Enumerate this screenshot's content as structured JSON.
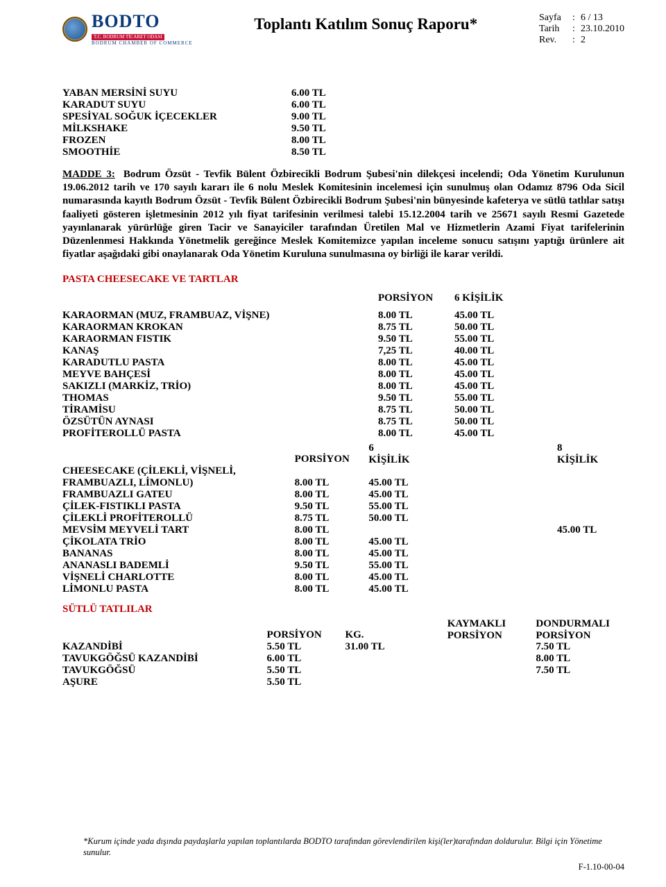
{
  "header": {
    "logo": {
      "name": "BODTO",
      "strip": "T.C. BODRUM TİCARET ODASI",
      "sub": "BODRUM CHAMBER OF COMMERCE"
    },
    "title": "Toplantı Katılım Sonuç Raporu*",
    "meta": {
      "page_label": "Sayfa",
      "page_value": "6 / 13",
      "date_label": "Tarih",
      "date_value": "23.10.2010",
      "rev_label": "Rev.",
      "rev_value": "2"
    }
  },
  "drinks": [
    {
      "name": "YABAN MERSİNİ SUYU",
      "price": "6.00 TL"
    },
    {
      "name": "KARADUT SUYU",
      "price": "6.00 TL"
    },
    {
      "name": "SPESİYAL SOĞUK İÇECEKLER",
      "price": "9.00 TL"
    },
    {
      "name": "MİLKSHAKE",
      "price": "9.50 TL"
    },
    {
      "name": "FROZEN",
      "price": "8.00 TL"
    },
    {
      "name": "SMOOTHİE",
      "price": "8.50 TL"
    }
  ],
  "madde": {
    "lead": "MADDE   3:",
    "body": "Bodrum Özsüt - Tevfik Bülent Özbirecikli Bodrum Şubesi'nin dilekçesi incelendi; Oda Yönetim Kurulunun 19.06.2012 tarih ve 170 sayılı kararı ile 6 nolu Meslek Komitesinin incelemesi için sunulmuş olan Odamız 8796 Oda Sicil numarasında kayıtlı Bodrum Özsüt - Tevfik Bülent Özbirecikli Bodrum Şubesi'nin bünyesinde kafeterya ve sütlü tatlılar satışı faaliyeti gösteren işletmesinin 2012 yılı fiyat tarifesinin verilmesi talebi 15.12.2004 tarih ve 25671 sayılı Resmi Gazetede yayınlanarak yürürlüğe giren Tacir ve Sanayiciler tarafından Üretilen Mal ve Hizmetlerin Azami Fiyat tarifelerinin Düzenlenmesi Hakkında Yönetmelik gereğince Meslek Komitemizce yapılan inceleme sonucu satışını yaptığı ürünlere ait fiyatlar aşağıdaki gibi onaylanarak Oda Yönetim Kuruluna sunulmasına oy birliği ile karar verildi."
  },
  "sectionA": {
    "title": "PASTA CHEESECAKE VE TARTLAR",
    "head": {
      "c2": "PORSİYON",
      "c3": "6 KİŞİLİK"
    },
    "rows": [
      {
        "name": "KARAORMAN (MUZ, FRAMBUAZ, VİŞNE)",
        "p": "8.00 TL",
        "k": "45.00 TL"
      },
      {
        "name": "KARAORMAN KROKAN",
        "p": "8.75 TL",
        "k": "50.00 TL"
      },
      {
        "name": "KARAORMAN FISTIK",
        "p": "9.50 TL",
        "k": "55.00 TL"
      },
      {
        "name": "KANAŞ",
        "p": "7,25 TL",
        "k": "40.00 TL"
      },
      {
        "name": "KARADUTLU PASTA",
        "p": "8.00 TL",
        "k": "45.00 TL"
      },
      {
        "name": "MEYVE BAHÇESİ",
        "p": "8.00 TL",
        "k": "45.00 TL"
      },
      {
        "name": "SAKIZLI (MARKİZ, TRİO)",
        "p": "8.00 TL",
        "k": "45.00 TL"
      },
      {
        "name": "THOMAS",
        "p": "9.50 TL",
        "k": "55.00 TL"
      },
      {
        "name": "TİRAMİSU",
        "p": "8.75 TL",
        "k": "50.00 TL"
      },
      {
        "name": "ÖZSÜTÜN AYNASI",
        "p": "8.75 TL",
        "k": "50.00 TL"
      },
      {
        "name": "PROFİTEROLLÜ PASTA",
        "p": "8.00 TL",
        "k": "45.00 TL"
      }
    ]
  },
  "sectionB": {
    "head": {
      "c2": "PORSİYON",
      "c3a": "6",
      "c3b": "KİŞİLİK",
      "c4a": "8",
      "c4b": "KİŞİLİK"
    },
    "rows": [
      {
        "name1": "CHEESECAKE (ÇİLEKLİ, VİŞNELİ,",
        "name2": "FRAMBUAZLI, LİMONLU)",
        "p": "8.00 TL",
        "k6": "45.00 TL",
        "k8": ""
      },
      {
        "name": "FRAMBUAZLI GATEU",
        "p": "8.00 TL",
        "k6": "45.00 TL",
        "k8": ""
      },
      {
        "name": "ÇİLEK-FISTIKLI PASTA",
        "p": "9.50 TL",
        "k6": "55.00 TL",
        "k8": ""
      },
      {
        "name": "ÇİLEKLİ PROFİTEROLLÜ",
        "p": "8.75 TL",
        "k6": "50.00 TL",
        "k8": ""
      },
      {
        "name": "MEVSİM MEYVELİ TART",
        "p": "8.00 TL",
        "k6": "",
        "k8": "45.00 TL"
      },
      {
        "name": "ÇİKOLATA TRİO",
        "p": "8.00 TL",
        "k6": "45.00 TL",
        "k8": ""
      },
      {
        "name": "BANANAS",
        "p": "8.00 TL",
        "k6": "45.00 TL",
        "k8": ""
      },
      {
        "name": "ANANASLI BADEMLİ",
        "p": "9.50 TL",
        "k6": "55.00 TL",
        "k8": ""
      },
      {
        "name": "VİŞNELİ CHARLOTTE",
        "p": "8.00 TL",
        "k6": "45.00 TL",
        "k8": ""
      },
      {
        "name": "LİMONLU PASTA",
        "p": "8.00 TL",
        "k6": "45.00 TL",
        "k8": ""
      }
    ]
  },
  "sectionC": {
    "title": "SÜTLÜ TATLILAR",
    "head": {
      "c2": "PORSİYON",
      "c3": "KG.",
      "c4a": "KAYMAKLI",
      "c4b": "PORSİYON",
      "c5a": "DONDURMALI",
      "c5b": "PORSİYON"
    },
    "rows": [
      {
        "name": "KAZANDİBİ",
        "p": "5.50 TL",
        "kg": "31.00 TL",
        "kay": "",
        "don": "7.50 TL"
      },
      {
        "name": "TAVUKGÖĞSÜ KAZANDİBİ",
        "p": "6.00 TL",
        "kg": "",
        "kay": "",
        "don": "8.00 TL"
      },
      {
        "name": "TAVUKGÖĞSÜ",
        "p": "5.50 TL",
        "kg": "",
        "kay": "",
        "don": "7.50 TL"
      },
      {
        "name": "AŞURE",
        "p": "5.50 TL",
        "kg": "",
        "kay": "",
        "don": ""
      }
    ]
  },
  "footer": {
    "note": "*Kurum içinde yada dışında paydaşlarla yapılan toplantılarda BODTO tarafından görevlendirilen kişi(ler)tarafından doldurulur. Bilgi için Yönetime sunulur.",
    "code": "F-1.10-00-04"
  }
}
